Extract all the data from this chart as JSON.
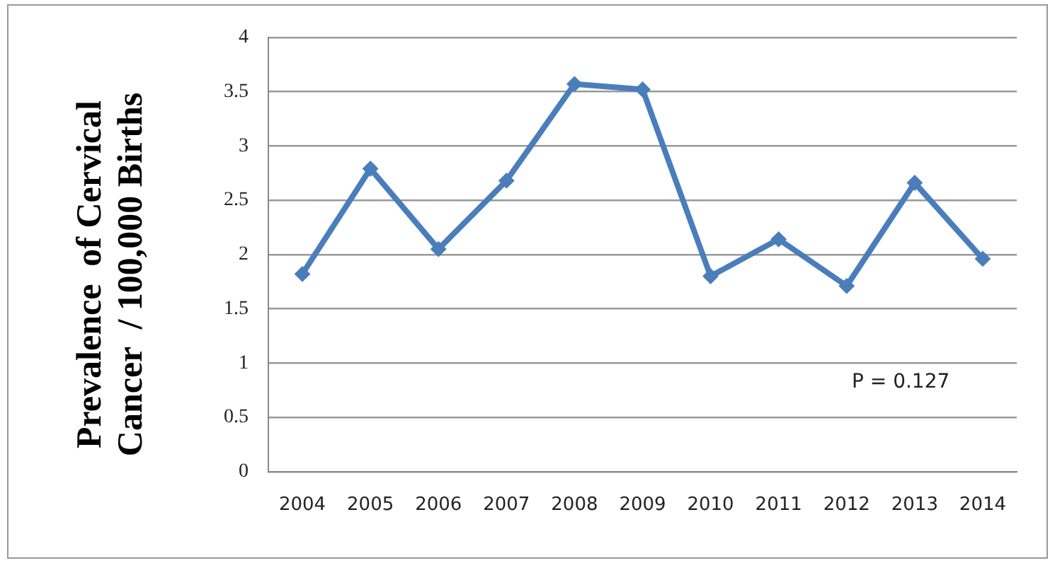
{
  "chart_data": {
    "type": "line",
    "ylabel": "Prevalence  of Cervical Cancer  / 100,000 Births",
    "categories": [
      "2004",
      "2005",
      "2006",
      "2007",
      "2008",
      "2009",
      "2010",
      "2011",
      "2012",
      "2013",
      "2014"
    ],
    "series": [
      {
        "color": "#4a7ebb",
        "values": [
          1.82,
          2.79,
          2.05,
          2.68,
          3.57,
          3.52,
          1.8,
          2.14,
          1.71,
          2.66,
          1.96
        ]
      }
    ],
    "ylim": [
      0,
      4
    ],
    "yticks": [
      0,
      0.5,
      1,
      1.5,
      2,
      2.5,
      3,
      3.5,
      4
    ],
    "grid": "y",
    "marker": "diamond",
    "line_style": "solid",
    "legend": false,
    "annotations": [
      "P = 0.127"
    ]
  }
}
